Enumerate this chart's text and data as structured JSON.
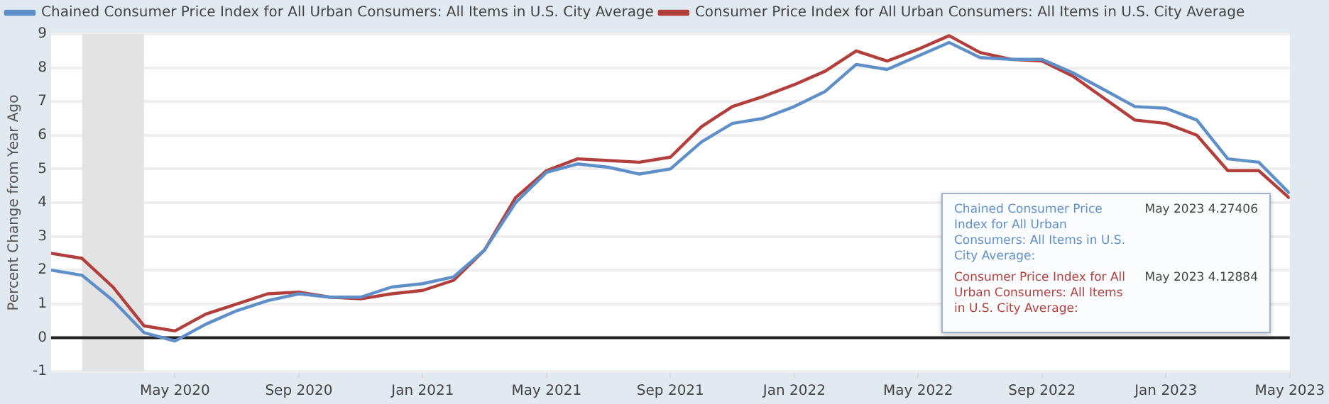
{
  "chart_data": {
    "type": "line",
    "ylabel": "Percent Change from Year Ago",
    "x": [
      "2020-01",
      "2020-02",
      "2020-03",
      "2020-04",
      "2020-05",
      "2020-06",
      "2020-07",
      "2020-08",
      "2020-09",
      "2020-10",
      "2020-11",
      "2020-12",
      "2021-01",
      "2021-02",
      "2021-03",
      "2021-04",
      "2021-05",
      "2021-06",
      "2021-07",
      "2021-08",
      "2021-09",
      "2021-10",
      "2021-11",
      "2021-12",
      "2022-01",
      "2022-02",
      "2022-03",
      "2022-04",
      "2022-05",
      "2022-06",
      "2022-07",
      "2022-08",
      "2022-09",
      "2022-10",
      "2022-11",
      "2022-12",
      "2023-01",
      "2023-02",
      "2023-03",
      "2023-04",
      "2023-05"
    ],
    "series": [
      {
        "name": "Chained Consumer Price Index for All Urban Consumers: All Items in U.S. City Average",
        "color": "#5f8fc9",
        "values": [
          2.0,
          1.85,
          1.1,
          0.15,
          -0.1,
          0.4,
          0.8,
          1.1,
          1.3,
          1.2,
          1.2,
          1.5,
          1.6,
          1.8,
          2.6,
          4.0,
          4.9,
          5.15,
          5.05,
          4.85,
          5.0,
          5.8,
          6.35,
          6.5,
          6.85,
          7.3,
          8.1,
          7.95,
          8.35,
          8.75,
          8.3,
          8.25,
          8.25,
          7.85,
          7.35,
          6.85,
          6.8,
          6.45,
          5.3,
          5.2,
          4.27406
        ]
      },
      {
        "name": "Consumer Price Index for All Urban Consumers: All Items in U.S. City Average",
        "color": "#b23f3c",
        "values": [
          2.5,
          2.35,
          1.5,
          0.35,
          0.2,
          0.7,
          1.0,
          1.3,
          1.35,
          1.2,
          1.15,
          1.3,
          1.4,
          1.7,
          2.6,
          4.15,
          4.95,
          5.3,
          5.25,
          5.2,
          5.35,
          6.25,
          6.85,
          7.15,
          7.5,
          7.9,
          8.5,
          8.2,
          8.55,
          8.95,
          8.45,
          8.25,
          8.2,
          7.75,
          7.1,
          6.45,
          6.35,
          6.0,
          4.95,
          4.95,
          4.12884
        ]
      }
    ],
    "xlim": [
      "2020-01",
      "2023-05"
    ],
    "xticks": [
      {
        "value": "2020-05",
        "label": "May 2020"
      },
      {
        "value": "2020-09",
        "label": "Sep 2020"
      },
      {
        "value": "2021-01",
        "label": "Jan 2021"
      },
      {
        "value": "2021-05",
        "label": "May 2021"
      },
      {
        "value": "2021-09",
        "label": "Sep 2021"
      },
      {
        "value": "2022-01",
        "label": "Jan 2022"
      },
      {
        "value": "2022-05",
        "label": "May 2022"
      },
      {
        "value": "2022-09",
        "label": "Sep 2022"
      },
      {
        "value": "2023-01",
        "label": "Jan 2023"
      },
      {
        "value": "2023-05",
        "label": "May 2023"
      }
    ],
    "ylim": [
      -1,
      9
    ],
    "yticks": [
      -1,
      0,
      1,
      2,
      3,
      4,
      5,
      6,
      7,
      8,
      9
    ],
    "bands": [
      {
        "axis": "x",
        "from": "2020-02",
        "to": "2020-04",
        "color": "#e3e3e3"
      }
    ],
    "ref_lines": [
      {
        "axis": "y",
        "value": 0,
        "color": "#222222"
      }
    ],
    "annotations": [
      "Chained Consumer Price Index for All Urban Consumers: All Items in U.S. City Average:",
      "May 2023 4.27406",
      "Consumer Price Index for All Urban Consumers: All Items in U.S. City Average:",
      "May 2023 4.12884"
    ],
    "grid": "y",
    "legend": "top left",
    "marker": "none",
    "line_style": "solid"
  }
}
